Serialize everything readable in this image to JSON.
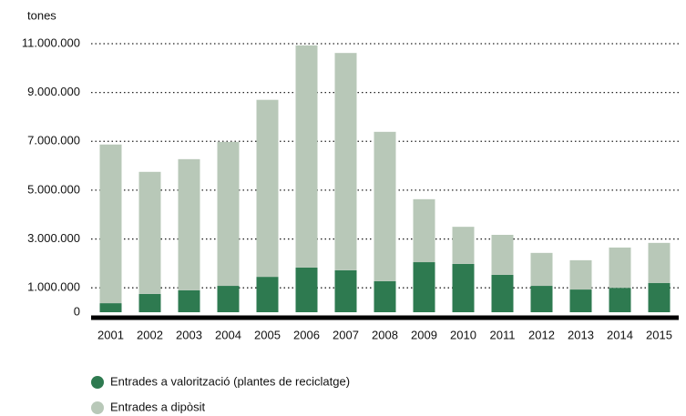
{
  "chart_data": {
    "type": "stacked_bar",
    "y_label": "tones",
    "categories": [
      "2001",
      "2002",
      "2003",
      "2004",
      "2005",
      "2006",
      "2007",
      "2008",
      "2009",
      "2010",
      "2011",
      "2012",
      "2013",
      "2014",
      "2015"
    ],
    "series": [
      {
        "name": "Entrades a valorització (plantes de reciclatge)",
        "color": "#2e7a50",
        "values": [
          370000,
          750000,
          900000,
          1080000,
          1450000,
          1830000,
          1720000,
          1270000,
          2050000,
          1980000,
          1530000,
          1080000,
          930000,
          1000000,
          1200000
        ]
      },
      {
        "name": "Entrades a dipòsit",
        "color": "#b8c8b8",
        "values": [
          6500000,
          5000000,
          5370000,
          5900000,
          7250000,
          9100000,
          8900000,
          6120000,
          2580000,
          1520000,
          1640000,
          1350000,
          1200000,
          1650000,
          1640000
        ]
      }
    ],
    "ylim": [
      0,
      11000000
    ],
    "yticks": [
      0,
      {
        "value": 1000000,
        "label": "1.000.000"
      },
      {
        "value": 3000000,
        "label": "3.000.000"
      },
      {
        "value": 5000000,
        "label": "5.000.000"
      },
      {
        "value": 7000000,
        "label": "7.000.000"
      },
      {
        "value": 9000000,
        "label": "9.000.000"
      },
      {
        "value": 11000000,
        "label": "11.000.000"
      }
    ],
    "grid": true
  }
}
